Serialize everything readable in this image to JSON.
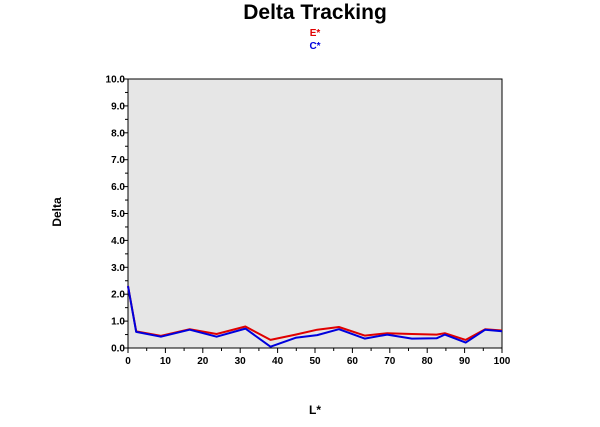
{
  "chart_data": {
    "type": "line",
    "title": "Delta Tracking",
    "xlabel": "L*",
    "ylabel": "Delta",
    "xlim": [
      0,
      100
    ],
    "ylim": [
      0,
      10
    ],
    "x_ticks": [
      "0",
      "10",
      "20",
      "30",
      "40",
      "50",
      "60",
      "70",
      "80",
      "90",
      "100"
    ],
    "y_ticks": [
      "0.0",
      "1.0",
      "2.0",
      "3.0",
      "4.0",
      "5.0",
      "6.0",
      "7.0",
      "8.0",
      "9.0",
      "10.0"
    ],
    "grid": false,
    "legend_position": "top-center",
    "plot_background": "#e6e6e6",
    "series": [
      {
        "name": "E*",
        "color": "#e00000",
        "x": [
          0,
          2.2,
          8.8,
          16.5,
          23.7,
          31.4,
          38.1,
          44.8,
          50.6,
          56.4,
          63.3,
          69.3,
          75.9,
          82.5,
          84.7,
          90.3,
          95.5,
          100
        ],
        "y": [
          2.3,
          0.62,
          0.45,
          0.7,
          0.52,
          0.8,
          0.3,
          0.5,
          0.68,
          0.78,
          0.46,
          0.55,
          0.52,
          0.5,
          0.55,
          0.3,
          0.7,
          0.65
        ]
      },
      {
        "name": "C*",
        "color": "#0000dd",
        "x": [
          0,
          2.2,
          8.8,
          16.5,
          23.7,
          31.4,
          38.1,
          44.8,
          50.6,
          56.4,
          63.3,
          69.3,
          75.9,
          82.5,
          84.7,
          90.3,
          95.5,
          100
        ],
        "y": [
          2.3,
          0.6,
          0.42,
          0.68,
          0.42,
          0.72,
          0.05,
          0.38,
          0.48,
          0.7,
          0.35,
          0.5,
          0.35,
          0.36,
          0.5,
          0.2,
          0.68,
          0.62
        ]
      }
    ]
  }
}
